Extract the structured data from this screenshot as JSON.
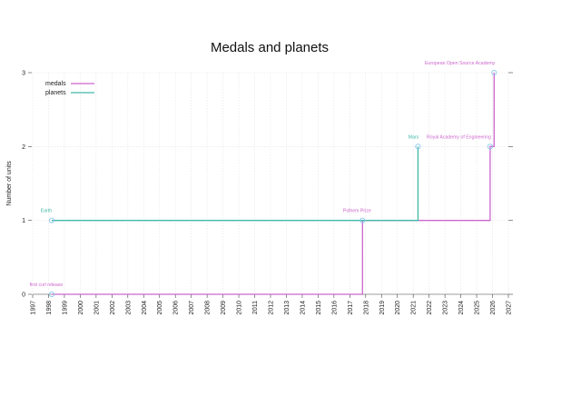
{
  "chart_data": {
    "type": "line",
    "step": true,
    "title": "Medals and planets",
    "xlabel": "",
    "ylabel": "Number of units",
    "xlim": [
      1997,
      2027
    ],
    "ylim": [
      0,
      3
    ],
    "x_ticks": [
      1997,
      1998,
      1999,
      2000,
      2001,
      2002,
      2003,
      2004,
      2005,
      2006,
      2007,
      2008,
      2009,
      2010,
      2011,
      2012,
      2013,
      2014,
      2015,
      2016,
      2017,
      2018,
      2019,
      2020,
      2021,
      2022,
      2023,
      2024,
      2025,
      2026,
      2027
    ],
    "y_ticks": [
      0,
      1,
      2,
      3
    ],
    "grid": true,
    "legend_position": "top-left",
    "marker_color": "#88c8ee",
    "series": [
      {
        "name": "medals",
        "color": "#cc66cc",
        "points": [
          {
            "x": 1998.2,
            "y": 0,
            "label": "first curl release"
          },
          {
            "x": 2017.8,
            "y": 1,
            "label": "Polhem Prize"
          },
          {
            "x": 2025.85,
            "y": 2,
            "label": "Royal Academy of Engineering"
          },
          {
            "x": 2026.1,
            "y": 3,
            "label": "European Open Source Academy"
          }
        ]
      },
      {
        "name": "planets",
        "color": "#40b8a8",
        "points": [
          {
            "x": 1998.2,
            "y": 1,
            "label": "Earth"
          },
          {
            "x": 2021.3,
            "y": 2,
            "label": "Mars"
          }
        ]
      }
    ]
  }
}
